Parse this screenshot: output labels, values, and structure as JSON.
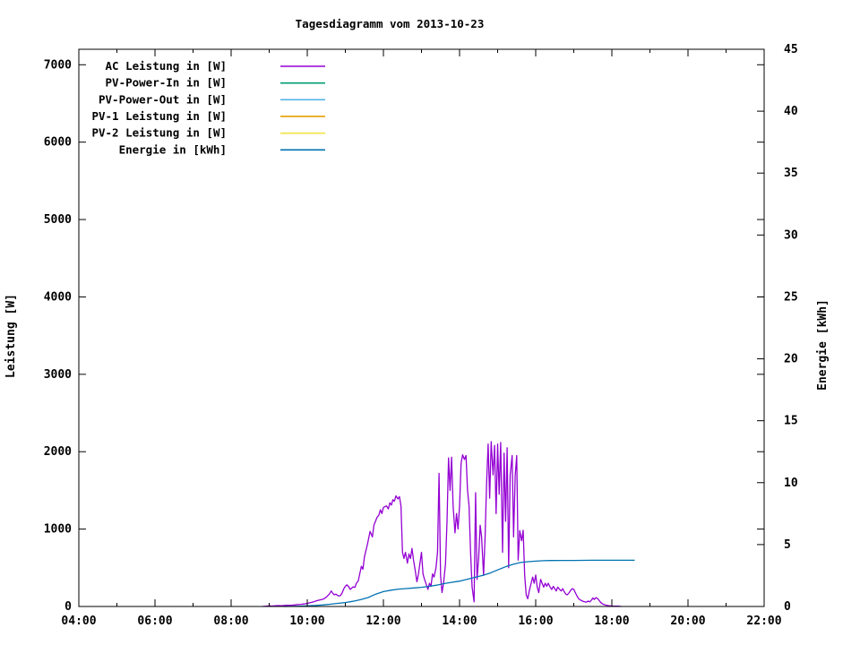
{
  "title": "Tagesdiagramm vom 2013-10-23",
  "colors": {
    "background": "#ffffff",
    "text": "#000000",
    "border": "#000000"
  },
  "axes": {
    "x": {
      "major_hours": [
        4,
        6,
        8,
        10,
        12,
        14,
        16,
        18,
        20,
        22
      ],
      "minor_hours": [
        5,
        7,
        9,
        11,
        13,
        15,
        17,
        19,
        21
      ],
      "tick_labels": [
        "04:00",
        "06:00",
        "08:00",
        "10:00",
        "12:00",
        "14:00",
        "16:00",
        "18:00",
        "20:00",
        "22:00"
      ]
    },
    "y_left": {
      "label": "Leistung [W]",
      "ticks": [
        0,
        1000,
        2000,
        3000,
        4000,
        5000,
        6000,
        7000
      ]
    },
    "y_right": {
      "label": "Energie [kWh]",
      "ticks": [
        0,
        5,
        10,
        15,
        20,
        25,
        30,
        35,
        40,
        45
      ]
    }
  },
  "chart_data": {
    "type": "line",
    "title": "Tagesdiagramm vom 2013-10-23",
    "ylabel": "Leistung [W]",
    "y2label": "Energie [kWh]",
    "xlim": [
      4,
      22
    ],
    "ylim_left": [
      0,
      7200
    ],
    "ylim_right": [
      0,
      45
    ],
    "x_unit": "hour of day",
    "legend_position": "top-left-inside",
    "series": [
      {
        "name": "AC Leistung in [W]",
        "color": "#9400d3",
        "axis": "left",
        "unit": "W",
        "points": [
          [
            8.83,
            0
          ],
          [
            8.92,
            5
          ],
          [
            9.0,
            8
          ],
          [
            9.08,
            6
          ],
          [
            9.17,
            10
          ],
          [
            9.25,
            12
          ],
          [
            9.33,
            10
          ],
          [
            9.42,
            14
          ],
          [
            9.5,
            16
          ],
          [
            9.58,
            15
          ],
          [
            9.67,
            20
          ],
          [
            9.75,
            25
          ],
          [
            9.83,
            28
          ],
          [
            9.92,
            32
          ],
          [
            10.0,
            40
          ],
          [
            10.08,
            50
          ],
          [
            10.17,
            60
          ],
          [
            10.25,
            75
          ],
          [
            10.33,
            85
          ],
          [
            10.42,
            95
          ],
          [
            10.5,
            120
          ],
          [
            10.58,
            160
          ],
          [
            10.63,
            200
          ],
          [
            10.67,
            170
          ],
          [
            10.71,
            150
          ],
          [
            10.75,
            160
          ],
          [
            10.79,
            145
          ],
          [
            10.83,
            135
          ],
          [
            10.87,
            140
          ],
          [
            10.92,
            180
          ],
          [
            10.96,
            230
          ],
          [
            11.0,
            260
          ],
          [
            11.04,
            280
          ],
          [
            11.08,
            260
          ],
          [
            11.13,
            220
          ],
          [
            11.17,
            240
          ],
          [
            11.21,
            255
          ],
          [
            11.25,
            245
          ],
          [
            11.29,
            300
          ],
          [
            11.34,
            330
          ],
          [
            11.42,
            520
          ],
          [
            11.46,
            480
          ],
          [
            11.5,
            640
          ],
          [
            11.58,
            800
          ],
          [
            11.65,
            970
          ],
          [
            11.71,
            900
          ],
          [
            11.75,
            1050
          ],
          [
            11.83,
            1150
          ],
          [
            11.88,
            1180
          ],
          [
            11.92,
            1250
          ],
          [
            11.96,
            1200
          ],
          [
            12.0,
            1280
          ],
          [
            12.08,
            1300
          ],
          [
            12.13,
            1260
          ],
          [
            12.17,
            1340
          ],
          [
            12.21,
            1310
          ],
          [
            12.25,
            1380
          ],
          [
            12.29,
            1360
          ],
          [
            12.33,
            1430
          ],
          [
            12.38,
            1390
          ],
          [
            12.42,
            1420
          ],
          [
            12.46,
            1300
          ],
          [
            12.5,
            700
          ],
          [
            12.54,
            620
          ],
          [
            12.58,
            700
          ],
          [
            12.63,
            560
          ],
          [
            12.67,
            680
          ],
          [
            12.71,
            620
          ],
          [
            12.75,
            750
          ],
          [
            12.79,
            600
          ],
          [
            12.83,
            480
          ],
          [
            12.88,
            320
          ],
          [
            12.92,
            420
          ],
          [
            12.96,
            560
          ],
          [
            13.0,
            700
          ],
          [
            13.04,
            420
          ],
          [
            13.08,
            350
          ],
          [
            13.13,
            280
          ],
          [
            13.17,
            220
          ],
          [
            13.21,
            300
          ],
          [
            13.25,
            260
          ],
          [
            13.29,
            420
          ],
          [
            13.33,
            380
          ],
          [
            13.38,
            500
          ],
          [
            13.42,
            700
          ],
          [
            13.46,
            1720
          ],
          [
            13.5,
            400
          ],
          [
            13.54,
            180
          ],
          [
            13.58,
            300
          ],
          [
            13.63,
            550
          ],
          [
            13.67,
            1100
          ],
          [
            13.71,
            1920
          ],
          [
            13.75,
            1500
          ],
          [
            13.79,
            1930
          ],
          [
            13.83,
            1300
          ],
          [
            13.88,
            950
          ],
          [
            13.92,
            1200
          ],
          [
            13.96,
            1000
          ],
          [
            14.0,
            1300
          ],
          [
            14.04,
            1850
          ],
          [
            14.08,
            1960
          ],
          [
            14.13,
            1900
          ],
          [
            14.17,
            1950
          ],
          [
            14.21,
            1500
          ],
          [
            14.25,
            1300
          ],
          [
            14.29,
            700
          ],
          [
            14.33,
            250
          ],
          [
            14.38,
            60
          ],
          [
            14.42,
            1470
          ],
          [
            14.46,
            350
          ],
          [
            14.5,
            620
          ],
          [
            14.54,
            1050
          ],
          [
            14.58,
            900
          ],
          [
            14.63,
            400
          ],
          [
            14.67,
            900
          ],
          [
            14.71,
            1600
          ],
          [
            14.75,
            2100
          ],
          [
            14.79,
            1400
          ],
          [
            14.83,
            2130
          ],
          [
            14.88,
            1700
          ],
          [
            14.92,
            2080
          ],
          [
            14.96,
            1200
          ],
          [
            15.0,
            2100
          ],
          [
            15.04,
            1450
          ],
          [
            15.08,
            2120
          ],
          [
            15.13,
            700
          ],
          [
            15.17,
            1980
          ],
          [
            15.21,
            1100
          ],
          [
            15.25,
            2050
          ],
          [
            15.29,
            500
          ],
          [
            15.33,
            1700
          ],
          [
            15.38,
            1950
          ],
          [
            15.42,
            900
          ],
          [
            15.46,
            1690
          ],
          [
            15.5,
            1950
          ],
          [
            15.54,
            600
          ],
          [
            15.58,
            980
          ],
          [
            15.63,
            850
          ],
          [
            15.67,
            985
          ],
          [
            15.71,
            400
          ],
          [
            15.75,
            150
          ],
          [
            15.79,
            100
          ],
          [
            15.83,
            200
          ],
          [
            15.88,
            300
          ],
          [
            15.92,
            380
          ],
          [
            15.96,
            300
          ],
          [
            16.0,
            406
          ],
          [
            16.04,
            250
          ],
          [
            16.08,
            180
          ],
          [
            16.13,
            350
          ],
          [
            16.17,
            300
          ],
          [
            16.21,
            250
          ],
          [
            16.25,
            300
          ],
          [
            16.29,
            260
          ],
          [
            16.33,
            300
          ],
          [
            16.38,
            250
          ],
          [
            16.42,
            220
          ],
          [
            16.46,
            260
          ],
          [
            16.5,
            230
          ],
          [
            16.54,
            200
          ],
          [
            16.58,
            250
          ],
          [
            16.63,
            220
          ],
          [
            16.67,
            200
          ],
          [
            16.71,
            230
          ],
          [
            16.75,
            190
          ],
          [
            16.79,
            160
          ],
          [
            16.83,
            150
          ],
          [
            16.88,
            180
          ],
          [
            16.92,
            210
          ],
          [
            16.96,
            230
          ],
          [
            17.0,
            220
          ],
          [
            17.04,
            180
          ],
          [
            17.08,
            140
          ],
          [
            17.13,
            100
          ],
          [
            17.17,
            85
          ],
          [
            17.21,
            75
          ],
          [
            17.25,
            65
          ],
          [
            17.29,
            60
          ],
          [
            17.33,
            55
          ],
          [
            17.38,
            70
          ],
          [
            17.42,
            60
          ],
          [
            17.46,
            80
          ],
          [
            17.5,
            110
          ],
          [
            17.54,
            90
          ],
          [
            17.58,
            115
          ],
          [
            17.63,
            100
          ],
          [
            17.67,
            75
          ],
          [
            17.71,
            50
          ],
          [
            17.75,
            35
          ],
          [
            17.79,
            25
          ],
          [
            17.83,
            18
          ],
          [
            17.92,
            10
          ],
          [
            18.0,
            6
          ],
          [
            18.08,
            5
          ],
          [
            18.17,
            4
          ],
          [
            18.25,
            0
          ]
        ]
      },
      {
        "name": "PV-Power-In in [W]",
        "color": "#009e73",
        "axis": "left",
        "unit": "W",
        "points": []
      },
      {
        "name": "PV-Power-Out in [W]",
        "color": "#56b4e9",
        "axis": "left",
        "unit": "W",
        "points": []
      },
      {
        "name": "PV-1 Leistung in [W]",
        "color": "#e69f00",
        "axis": "left",
        "unit": "W",
        "points": []
      },
      {
        "name": "PV-2 Leistung in [W]",
        "color": "#f0e442",
        "axis": "left",
        "unit": "W",
        "points": []
      },
      {
        "name": "Energie in [kWh]",
        "color": "#0072b2",
        "axis": "right",
        "unit": "kWh",
        "points": [
          [
            9.4,
            0
          ],
          [
            9.6,
            0.01
          ],
          [
            9.8,
            0.03
          ],
          [
            10.0,
            0.05
          ],
          [
            10.2,
            0.08
          ],
          [
            10.4,
            0.12
          ],
          [
            10.6,
            0.18
          ],
          [
            10.8,
            0.25
          ],
          [
            11.0,
            0.32
          ],
          [
            11.2,
            0.42
          ],
          [
            11.4,
            0.55
          ],
          [
            11.6,
            0.72
          ],
          [
            11.8,
            1.0
          ],
          [
            12.0,
            1.2
          ],
          [
            12.2,
            1.32
          ],
          [
            12.4,
            1.4
          ],
          [
            12.6,
            1.45
          ],
          [
            12.8,
            1.5
          ],
          [
            13.0,
            1.55
          ],
          [
            13.2,
            1.63
          ],
          [
            13.4,
            1.72
          ],
          [
            13.6,
            1.85
          ],
          [
            13.8,
            1.95
          ],
          [
            14.0,
            2.05
          ],
          [
            14.2,
            2.2
          ],
          [
            14.4,
            2.35
          ],
          [
            14.6,
            2.5
          ],
          [
            14.8,
            2.7
          ],
          [
            15.0,
            2.95
          ],
          [
            15.2,
            3.2
          ],
          [
            15.4,
            3.4
          ],
          [
            15.6,
            3.55
          ],
          [
            15.8,
            3.62
          ],
          [
            16.0,
            3.66
          ],
          [
            16.2,
            3.7
          ],
          [
            16.4,
            3.71
          ],
          [
            16.7,
            3.72
          ],
          [
            17.0,
            3.72
          ],
          [
            17.5,
            3.73
          ],
          [
            18.0,
            3.73
          ],
          [
            18.3,
            3.73
          ],
          [
            18.6,
            3.73
          ]
        ]
      }
    ]
  }
}
